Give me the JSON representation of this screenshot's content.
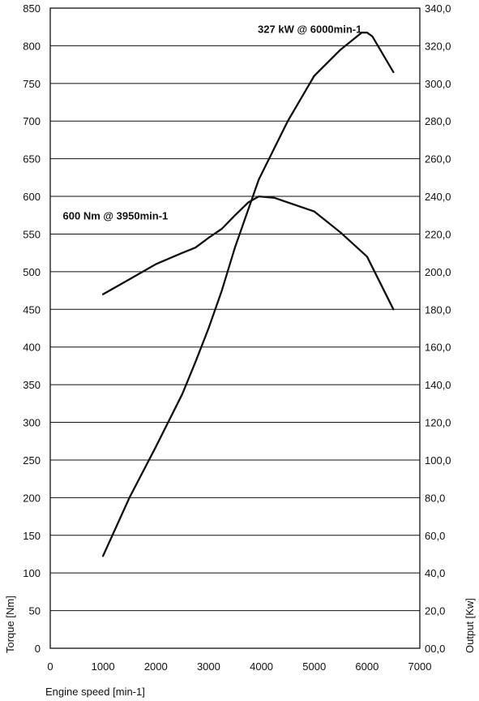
{
  "chart_data": {
    "type": "line",
    "title": "",
    "xlabel": "Engine speed [min-1]",
    "ylabel_left": "Torque [Nm]",
    "ylabel_right": "Output [Kw]",
    "xlim": [
      0,
      7000
    ],
    "ylim_left": [
      0,
      850
    ],
    "ylim_right": [
      0,
      340
    ],
    "x_ticks": [
      "0",
      "1000",
      "2000",
      "3000",
      "4000",
      "5000",
      "6000",
      "7000"
    ],
    "y_left_ticks": [
      "0",
      "50",
      "100",
      "150",
      "200",
      "250",
      "300",
      "350",
      "400",
      "450",
      "500",
      "550",
      "600",
      "650",
      "700",
      "750",
      "800",
      "850"
    ],
    "y_right_ticks": [
      "00,0",
      "20,0",
      "40,0",
      "60,0",
      "80,0",
      "100,0",
      "120,0",
      "140,0",
      "160,0",
      "180,0",
      "200,0",
      "220,0",
      "240,0",
      "260,0",
      "280,0",
      "300,0",
      "320,0",
      "340,0"
    ],
    "grid": "horizontal",
    "series": [
      {
        "axis": "left",
        "x": [
          1000,
          1500,
          2000,
          2500,
          2750,
          3000,
          3250,
          3500,
          3750,
          3950,
          4250,
          4500,
          5000,
          5500,
          6000,
          6500
        ],
        "values": [
          470,
          490,
          510,
          525,
          532,
          545,
          557,
          575,
          592,
          600,
          598,
          592,
          580,
          552,
          520,
          450
        ]
      },
      {
        "axis": "right",
        "x": [
          1000,
          1500,
          2000,
          2500,
          2750,
          3000,
          3250,
          3500,
          3750,
          3950,
          4250,
          4500,
          5000,
          5500,
          5900,
          6000,
          6100,
          6500
        ],
        "values": [
          49,
          80,
          107,
          135,
          152,
          170,
          190,
          213,
          233,
          249,
          266,
          280,
          304,
          318,
          327,
          327,
          325,
          306
        ]
      }
    ],
    "annotations": [
      {
        "text": "327 kW @ 6000min-1",
        "x": 5900,
        "y_right": 329
      },
      {
        "text": "600 Nm @ 3950min-1",
        "x": 2230,
        "y_left": 575
      }
    ]
  }
}
